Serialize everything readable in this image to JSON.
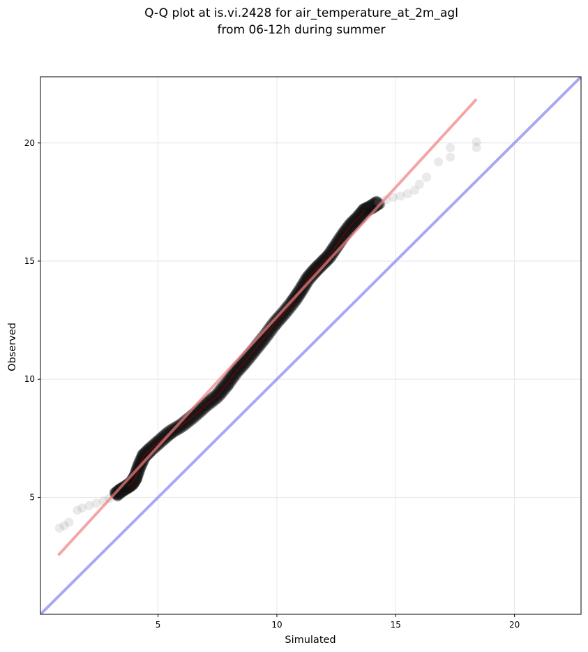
{
  "chart_data": {
    "type": "scatter",
    "title_line1": "Q-Q plot at is.vi.2428 for air_temperature_at_2m_agl",
    "title_line2": "from 06-12h during summer",
    "xlabel": "Simulated",
    "ylabel": "Observed",
    "xlim": [
      0.05,
      22.8
    ],
    "ylim": [
      0.05,
      22.8
    ],
    "x_ticks": [
      5,
      10,
      15,
      20
    ],
    "y_ticks": [
      5,
      10,
      15,
      20
    ],
    "grid": true,
    "colors": {
      "points": "#8a8a8a",
      "points_dense": "#222222",
      "fit_line": "#f08080",
      "identity_line": "#8c8cf0",
      "dense_fit": "#8b0000"
    },
    "fit_line": {
      "x": [
        0.8,
        18.4
      ],
      "y": [
        2.55,
        21.85
      ]
    },
    "identity_line": {
      "x": [
        0.05,
        22.8
      ],
      "y": [
        0.05,
        22.8
      ]
    },
    "qq_curve": {
      "x": [
        0.85,
        1.05,
        1.25,
        1.6,
        1.8,
        2.1,
        2.4,
        2.7,
        2.95,
        3.2,
        3.45,
        3.7,
        3.9,
        4.05,
        4.2,
        4.4,
        4.7,
        5.1,
        5.5,
        6.0,
        6.5,
        7.0,
        7.5,
        7.9,
        8.3,
        8.7,
        9.1,
        9.5,
        9.9,
        10.3,
        10.7,
        11.0,
        11.3,
        11.6,
        11.9,
        12.2,
        12.5,
        12.8,
        13.1,
        13.4,
        13.7,
        14.0,
        14.3,
        14.6,
        14.9,
        15.2,
        15.5,
        15.8,
        16.0,
        16.3,
        16.8,
        17.3,
        17.3,
        18.4,
        18.4
      ],
      "y": [
        3.7,
        3.8,
        3.95,
        4.45,
        4.55,
        4.65,
        4.75,
        4.85,
        4.95,
        5.1,
        5.3,
        5.45,
        5.6,
        5.85,
        6.3,
        6.75,
        7.05,
        7.4,
        7.75,
        8.05,
        8.45,
        8.9,
        9.3,
        9.8,
        10.35,
        10.8,
        11.3,
        11.8,
        12.35,
        12.8,
        13.3,
        13.75,
        14.25,
        14.6,
        14.9,
        15.2,
        15.65,
        16.1,
        16.5,
        16.8,
        17.15,
        17.3,
        17.5,
        17.6,
        17.7,
        17.75,
        17.85,
        18.0,
        18.25,
        18.55,
        19.2,
        19.4,
        19.8,
        19.8,
        20.05
      ]
    }
  }
}
